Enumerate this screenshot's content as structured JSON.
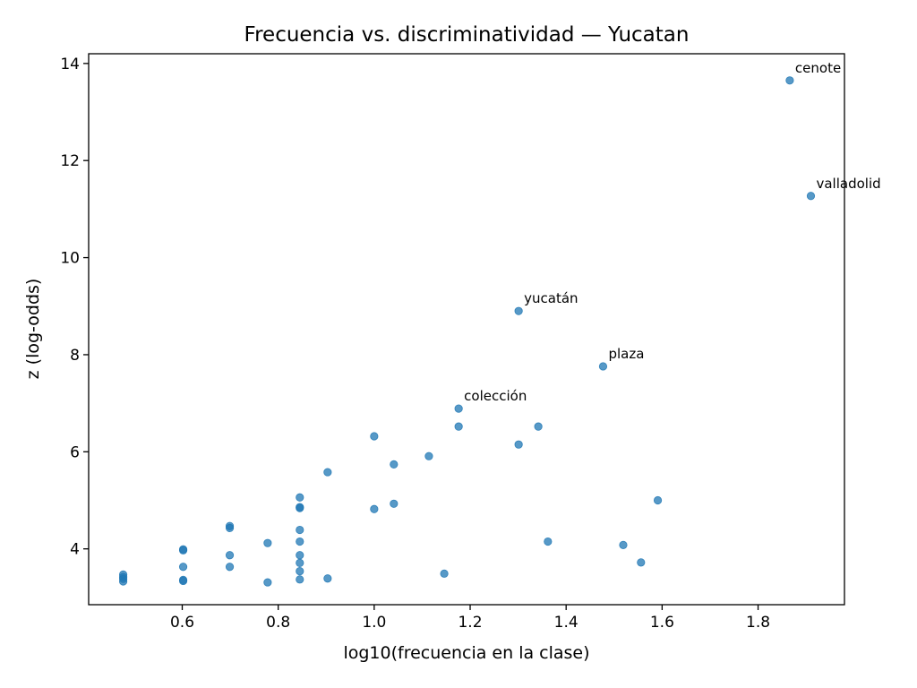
{
  "chart_data": {
    "type": "scatter",
    "title": "Frecuencia vs. discriminatividad — Yucatan",
    "xlabel": "log10(frecuencia en la clase)",
    "ylabel": "z (log-odds)",
    "xlim": [
      0.405,
      1.98
    ],
    "ylim": [
      2.85,
      14.2
    ],
    "xticks": [
      0.6,
      0.8,
      1.0,
      1.2,
      1.4,
      1.6,
      1.8
    ],
    "xtick_labels": [
      "0.6",
      "0.8",
      "1.0",
      "1.2",
      "1.4",
      "1.6",
      "1.8"
    ],
    "yticks": [
      4,
      6,
      8,
      10,
      12,
      14
    ],
    "ytick_labels": [
      "4",
      "6",
      "8",
      "10",
      "12",
      "14"
    ],
    "grid": false,
    "color": "#1f77b4",
    "points": [
      {
        "x": 1.866,
        "y": 13.65,
        "label": "cenote"
      },
      {
        "x": 1.91,
        "y": 11.27,
        "label": "valladolid"
      },
      {
        "x": 1.301,
        "y": 8.9,
        "label": "yucatán"
      },
      {
        "x": 1.477,
        "y": 7.76,
        "label": "plaza"
      },
      {
        "x": 1.176,
        "y": 6.89,
        "label": "colección"
      },
      {
        "x": 1.176,
        "y": 6.52
      },
      {
        "x": 1.342,
        "y": 6.52
      },
      {
        "x": 1.301,
        "y": 6.15
      },
      {
        "x": 1.0,
        "y": 6.32
      },
      {
        "x": 1.114,
        "y": 5.91
      },
      {
        "x": 1.041,
        "y": 5.74
      },
      {
        "x": 0.903,
        "y": 5.58
      },
      {
        "x": 1.591,
        "y": 5.0
      },
      {
        "x": 0.845,
        "y": 5.06
      },
      {
        "x": 1.041,
        "y": 4.93
      },
      {
        "x": 0.845,
        "y": 4.86
      },
      {
        "x": 0.845,
        "y": 4.84
      },
      {
        "x": 1.0,
        "y": 4.82
      },
      {
        "x": 0.699,
        "y": 4.47
      },
      {
        "x": 0.699,
        "y": 4.43
      },
      {
        "x": 0.845,
        "y": 4.39
      },
      {
        "x": 1.362,
        "y": 4.15
      },
      {
        "x": 0.845,
        "y": 4.15
      },
      {
        "x": 0.778,
        "y": 4.12
      },
      {
        "x": 1.519,
        "y": 4.08
      },
      {
        "x": 0.602,
        "y": 3.99
      },
      {
        "x": 0.602,
        "y": 3.97
      },
      {
        "x": 0.699,
        "y": 3.87
      },
      {
        "x": 0.845,
        "y": 3.87
      },
      {
        "x": 1.556,
        "y": 3.72
      },
      {
        "x": 0.845,
        "y": 3.71
      },
      {
        "x": 0.602,
        "y": 3.63
      },
      {
        "x": 0.699,
        "y": 3.63
      },
      {
        "x": 0.845,
        "y": 3.54
      },
      {
        "x": 1.146,
        "y": 3.49
      },
      {
        "x": 0.477,
        "y": 3.47
      },
      {
        "x": 0.477,
        "y": 3.42
      },
      {
        "x": 0.477,
        "y": 3.38
      },
      {
        "x": 0.903,
        "y": 3.39
      },
      {
        "x": 0.845,
        "y": 3.37
      },
      {
        "x": 0.602,
        "y": 3.36
      },
      {
        "x": 0.602,
        "y": 3.34
      },
      {
        "x": 0.477,
        "y": 3.33
      },
      {
        "x": 0.778,
        "y": 3.31
      }
    ]
  }
}
